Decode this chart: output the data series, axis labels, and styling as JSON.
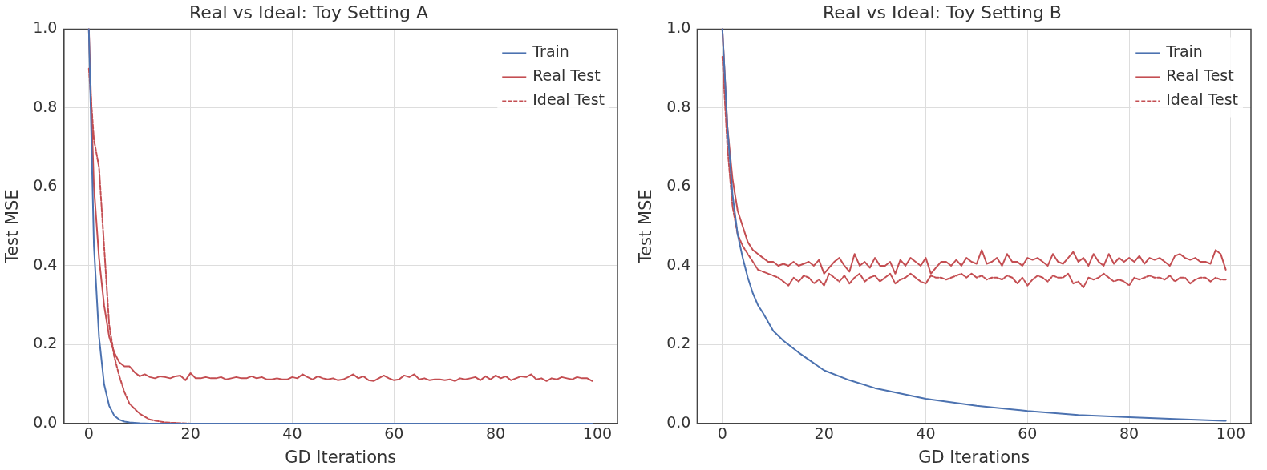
{
  "chart_data": [
    {
      "type": "line",
      "title": "Real vs Ideal: Toy Setting A",
      "xlabel": "GD Iterations",
      "ylabel": "Test MSE",
      "grid": true,
      "legend": "top right",
      "x": [
        0,
        1,
        2,
        3,
        4,
        5,
        6,
        7,
        8,
        9,
        10,
        11,
        12,
        13,
        14,
        15,
        16,
        17,
        18,
        19,
        20,
        21,
        22,
        23,
        24,
        25,
        26,
        27,
        28,
        29,
        30,
        31,
        32,
        33,
        34,
        35,
        36,
        37,
        38,
        39,
        40,
        41,
        42,
        43,
        44,
        45,
        46,
        47,
        48,
        49,
        50,
        51,
        52,
        53,
        54,
        55,
        56,
        57,
        58,
        59,
        60,
        61,
        62,
        63,
        64,
        65,
        66,
        67,
        68,
        69,
        70,
        71,
        72,
        73,
        74,
        75,
        76,
        77,
        78,
        79,
        80,
        81,
        82,
        83,
        84,
        85,
        86,
        87,
        88,
        89,
        90,
        91,
        92,
        93,
        94,
        95,
        96,
        97,
        98,
        99
      ],
      "xlim": [
        -4.95,
        103.95
      ],
      "xticks": [
        0,
        20,
        40,
        60,
        80,
        100
      ],
      "ylim": [
        0,
        1
      ],
      "yticks": [
        {
          "value": 0,
          "label": "0.0"
        },
        {
          "value": 0.2,
          "label": "0.2"
        },
        {
          "value": 0.4,
          "label": "0.4"
        },
        {
          "value": 0.6,
          "label": "0.6"
        },
        {
          "value": 0.8,
          "label": "0.8"
        },
        {
          "value": 1,
          "label": "1.0"
        }
      ],
      "series": [
        {
          "name": "Train",
          "color": "#4c72b0",
          "line_style": "solid",
          "x": [
            0,
            1,
            2,
            3,
            4,
            5,
            6,
            7,
            8,
            10,
            12,
            15,
            20,
            30,
            50,
            99
          ],
          "values": [
            1.0,
            0.45,
            0.22,
            0.1,
            0.045,
            0.02,
            0.01,
            0.005,
            0.003,
            0.001,
            0,
            0,
            0,
            0,
            0,
            0
          ]
        },
        {
          "name": "Real Test",
          "color": "#c44e52",
          "line_style": "solid",
          "values": [
            1.0,
            0.6,
            0.42,
            0.3,
            0.22,
            0.18,
            0.155,
            0.145,
            0.145,
            0.13,
            0.12,
            0.125,
            0.118,
            0.115,
            0.12,
            0.118,
            0.115,
            0.12,
            0.122,
            0.11,
            0.128,
            0.115,
            0.115,
            0.118,
            0.115,
            0.115,
            0.118,
            0.112,
            0.115,
            0.118,
            0.115,
            0.115,
            0.12,
            0.115,
            0.118,
            0.112,
            0.112,
            0.115,
            0.112,
            0.112,
            0.118,
            0.115,
            0.125,
            0.118,
            0.112,
            0.12,
            0.115,
            0.112,
            0.115,
            0.11,
            0.112,
            0.118,
            0.125,
            0.115,
            0.12,
            0.11,
            0.108,
            0.115,
            0.122,
            0.115,
            0.11,
            0.112,
            0.122,
            0.118,
            0.125,
            0.112,
            0.115,
            0.11,
            0.112,
            0.112,
            0.11,
            0.112,
            0.108,
            0.115,
            0.112,
            0.115,
            0.118,
            0.11,
            0.12,
            0.112,
            0.122,
            0.115,
            0.12,
            0.11,
            0.115,
            0.12,
            0.118,
            0.125,
            0.112,
            0.115,
            0.108,
            0.115,
            0.112,
            0.118,
            0.115,
            0.112,
            0.118,
            0.115,
            0.115,
            0.108
          ]
        },
        {
          "name": "Ideal Test",
          "color": "#c44e52",
          "line_style": "dashed",
          "x": [
            0,
            1,
            2,
            3,
            4,
            5,
            6,
            7,
            8,
            10,
            12,
            15,
            20,
            30
          ],
          "values": [
            0.9,
            0.72,
            0.65,
            0.45,
            0.25,
            0.17,
            0.12,
            0.08,
            0.05,
            0.025,
            0.01,
            0.003,
            0,
            0
          ]
        }
      ]
    },
    {
      "type": "line",
      "title": "Real vs Ideal: Toy Setting B",
      "xlabel": "GD Iterations",
      "ylabel": "Test MSE",
      "grid": true,
      "legend": "top right",
      "x": [
        0,
        1,
        2,
        3,
        4,
        5,
        6,
        7,
        8,
        9,
        10,
        11,
        12,
        13,
        14,
        15,
        16,
        17,
        18,
        19,
        20,
        21,
        22,
        23,
        24,
        25,
        26,
        27,
        28,
        29,
        30,
        31,
        32,
        33,
        34,
        35,
        36,
        37,
        38,
        39,
        40,
        41,
        42,
        43,
        44,
        45,
        46,
        47,
        48,
        49,
        50,
        51,
        52,
        53,
        54,
        55,
        56,
        57,
        58,
        59,
        60,
        61,
        62,
        63,
        64,
        65,
        66,
        67,
        68,
        69,
        70,
        71,
        72,
        73,
        74,
        75,
        76,
        77,
        78,
        79,
        80,
        81,
        82,
        83,
        84,
        85,
        86,
        87,
        88,
        89,
        90,
        91,
        92,
        93,
        94,
        95,
        96,
        97,
        98,
        99
      ],
      "xlim": [
        -4.95,
        103.95
      ],
      "xticks": [
        0,
        20,
        40,
        60,
        80,
        100
      ],
      "ylim": [
        0,
        1
      ],
      "yticks": [
        {
          "value": 0,
          "label": "0.0"
        },
        {
          "value": 0.2,
          "label": "0.2"
        },
        {
          "value": 0.4,
          "label": "0.4"
        },
        {
          "value": 0.6,
          "label": "0.6"
        },
        {
          "value": 0.8,
          "label": "0.8"
        },
        {
          "value": 1,
          "label": "1.0"
        }
      ],
      "series": [
        {
          "name": "Train",
          "color": "#4c72b0",
          "line_style": "solid",
          "x": [
            0,
            1,
            2,
            3,
            4,
            5,
            6,
            7,
            8,
            10,
            12,
            15,
            20,
            25,
            30,
            40,
            50,
            60,
            70,
            80,
            90,
            99
          ],
          "values": [
            1.0,
            0.75,
            0.58,
            0.48,
            0.42,
            0.37,
            0.33,
            0.3,
            0.28,
            0.235,
            0.21,
            0.18,
            0.135,
            0.11,
            0.09,
            0.063,
            0.045,
            0.032,
            0.022,
            0.016,
            0.011,
            0.007
          ]
        },
        {
          "name": "Real Test",
          "color": "#c44e52",
          "line_style": "solid",
          "values": [
            1.0,
            0.75,
            0.62,
            0.54,
            0.5,
            0.46,
            0.44,
            0.43,
            0.42,
            0.41,
            0.41,
            0.4,
            0.405,
            0.4,
            0.41,
            0.4,
            0.405,
            0.41,
            0.4,
            0.415,
            0.38,
            0.395,
            0.41,
            0.42,
            0.4,
            0.385,
            0.43,
            0.4,
            0.41,
            0.395,
            0.42,
            0.4,
            0.4,
            0.41,
            0.38,
            0.415,
            0.4,
            0.42,
            0.41,
            0.4,
            0.42,
            0.38,
            0.395,
            0.41,
            0.41,
            0.4,
            0.415,
            0.4,
            0.42,
            0.41,
            0.405,
            0.44,
            0.405,
            0.41,
            0.42,
            0.4,
            0.43,
            0.41,
            0.41,
            0.4,
            0.42,
            0.415,
            0.42,
            0.41,
            0.4,
            0.43,
            0.41,
            0.405,
            0.42,
            0.435,
            0.41,
            0.42,
            0.4,
            0.43,
            0.41,
            0.4,
            0.43,
            0.405,
            0.42,
            0.41,
            0.42,
            0.41,
            0.425,
            0.405,
            0.42,
            0.415,
            0.42,
            0.41,
            0.4,
            0.425,
            0.43,
            0.42,
            0.415,
            0.42,
            0.41,
            0.41,
            0.405,
            0.44,
            0.43,
            0.39
          ]
        },
        {
          "name": "Ideal Test",
          "color": "#c44e52",
          "line_style": "dashed",
          "values": [
            0.93,
            0.7,
            0.55,
            0.48,
            0.45,
            0.43,
            0.41,
            0.39,
            0.385,
            0.38,
            0.375,
            0.37,
            0.36,
            0.35,
            0.37,
            0.36,
            0.375,
            0.37,
            0.355,
            0.365,
            0.35,
            0.38,
            0.37,
            0.36,
            0.375,
            0.355,
            0.37,
            0.38,
            0.36,
            0.37,
            0.375,
            0.36,
            0.37,
            0.38,
            0.355,
            0.365,
            0.37,
            0.38,
            0.37,
            0.36,
            0.355,
            0.375,
            0.37,
            0.37,
            0.365,
            0.37,
            0.375,
            0.38,
            0.37,
            0.38,
            0.37,
            0.375,
            0.365,
            0.37,
            0.37,
            0.365,
            0.375,
            0.37,
            0.355,
            0.37,
            0.35,
            0.365,
            0.375,
            0.37,
            0.36,
            0.375,
            0.37,
            0.37,
            0.38,
            0.355,
            0.36,
            0.345,
            0.37,
            0.365,
            0.37,
            0.38,
            0.37,
            0.36,
            0.365,
            0.36,
            0.35,
            0.37,
            0.365,
            0.37,
            0.375,
            0.37,
            0.37,
            0.365,
            0.375,
            0.36,
            0.37,
            0.37,
            0.355,
            0.365,
            0.37,
            0.37,
            0.36,
            0.37,
            0.365,
            0.365
          ]
        }
      ]
    }
  ]
}
